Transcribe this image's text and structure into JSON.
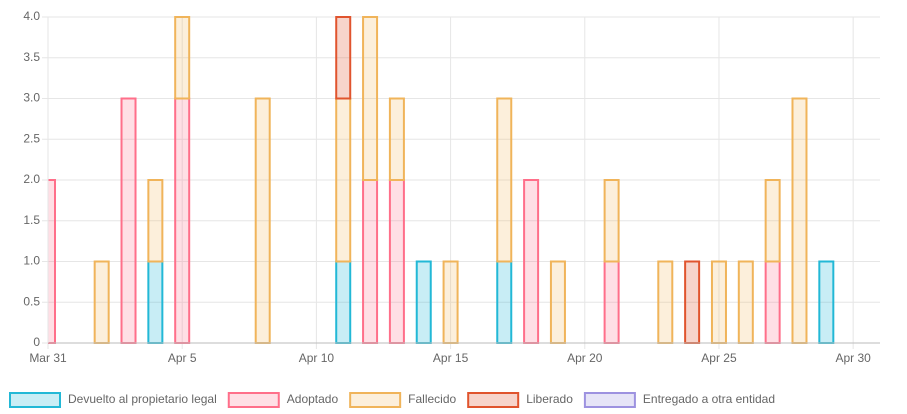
{
  "chart_data": {
    "type": "bar",
    "stacked": true,
    "x": [
      "Mar 31",
      "Apr 2",
      "Apr 3",
      "Apr 4",
      "Apr 5",
      "Apr 8",
      "Apr 11",
      "Apr 12",
      "Apr 13",
      "Apr 14",
      "Apr 15",
      "Apr 17",
      "Apr 18",
      "Apr 19",
      "Apr 21",
      "Apr 23",
      "Apr 24",
      "Apr 25",
      "Apr 26",
      "Apr 27",
      "Apr 28",
      "Apr 29"
    ],
    "series": [
      {
        "name": "Devuelto al propietario legal",
        "color": "#22b8d6",
        "fill": "rgba(34,184,214,0.25)",
        "values": [
          0,
          0,
          0,
          1,
          0,
          0,
          1,
          0,
          0,
          1,
          0,
          1,
          0,
          0,
          0,
          0,
          0,
          0,
          0,
          0,
          0,
          1
        ]
      },
      {
        "name": "Adoptado",
        "color": "#ff6f8a",
        "fill": "rgba(255,111,138,0.22)",
        "values": [
          2,
          0,
          3,
          0,
          3,
          0,
          0,
          2,
          2,
          0,
          0,
          0,
          2,
          0,
          1,
          0,
          0,
          0,
          0,
          1,
          0,
          0
        ]
      },
      {
        "name": "Fallecido",
        "color": "#f0b45a",
        "fill": "rgba(240,180,90,0.22)",
        "values": [
          0,
          1,
          0,
          1,
          1,
          3,
          2,
          2,
          1,
          0,
          1,
          2,
          0,
          1,
          1,
          1,
          0,
          1,
          1,
          1,
          3,
          0
        ]
      },
      {
        "name": "Liberado",
        "color": "#e0542e",
        "fill": "rgba(224,84,46,0.25)",
        "values": [
          0,
          0,
          0,
          0,
          0,
          0,
          1,
          0,
          0,
          0,
          0,
          0,
          0,
          0,
          0,
          0,
          1,
          0,
          0,
          0,
          0,
          0
        ]
      },
      {
        "name": "Entregado a otra entidad",
        "color": "#9d92e0",
        "fill": "rgba(157,146,224,0.25)",
        "values": [
          0,
          0,
          0,
          0,
          0,
          0,
          0,
          0,
          0,
          0,
          0,
          0,
          0,
          0,
          0,
          0,
          0,
          0,
          0,
          0,
          0,
          0
        ]
      }
    ],
    "xlim": [
      "Mar 31",
      "May 1"
    ],
    "xticks": [
      "Mar 31",
      "Apr 5",
      "Apr 10",
      "Apr 15",
      "Apr 20",
      "Apr 25",
      "Apr 30"
    ],
    "ylim": [
      0,
      4
    ],
    "yticks": [
      0,
      0.5,
      {
        "value": 1,
        "label": "1.0"
      },
      1.5,
      {
        "value": 2,
        "label": "2.0"
      },
      2.5,
      {
        "value": 3,
        "label": "3.0"
      },
      3.5,
      {
        "value": 4,
        "label": "4.0"
      }
    ],
    "grid": true,
    "legend": "bottom"
  }
}
